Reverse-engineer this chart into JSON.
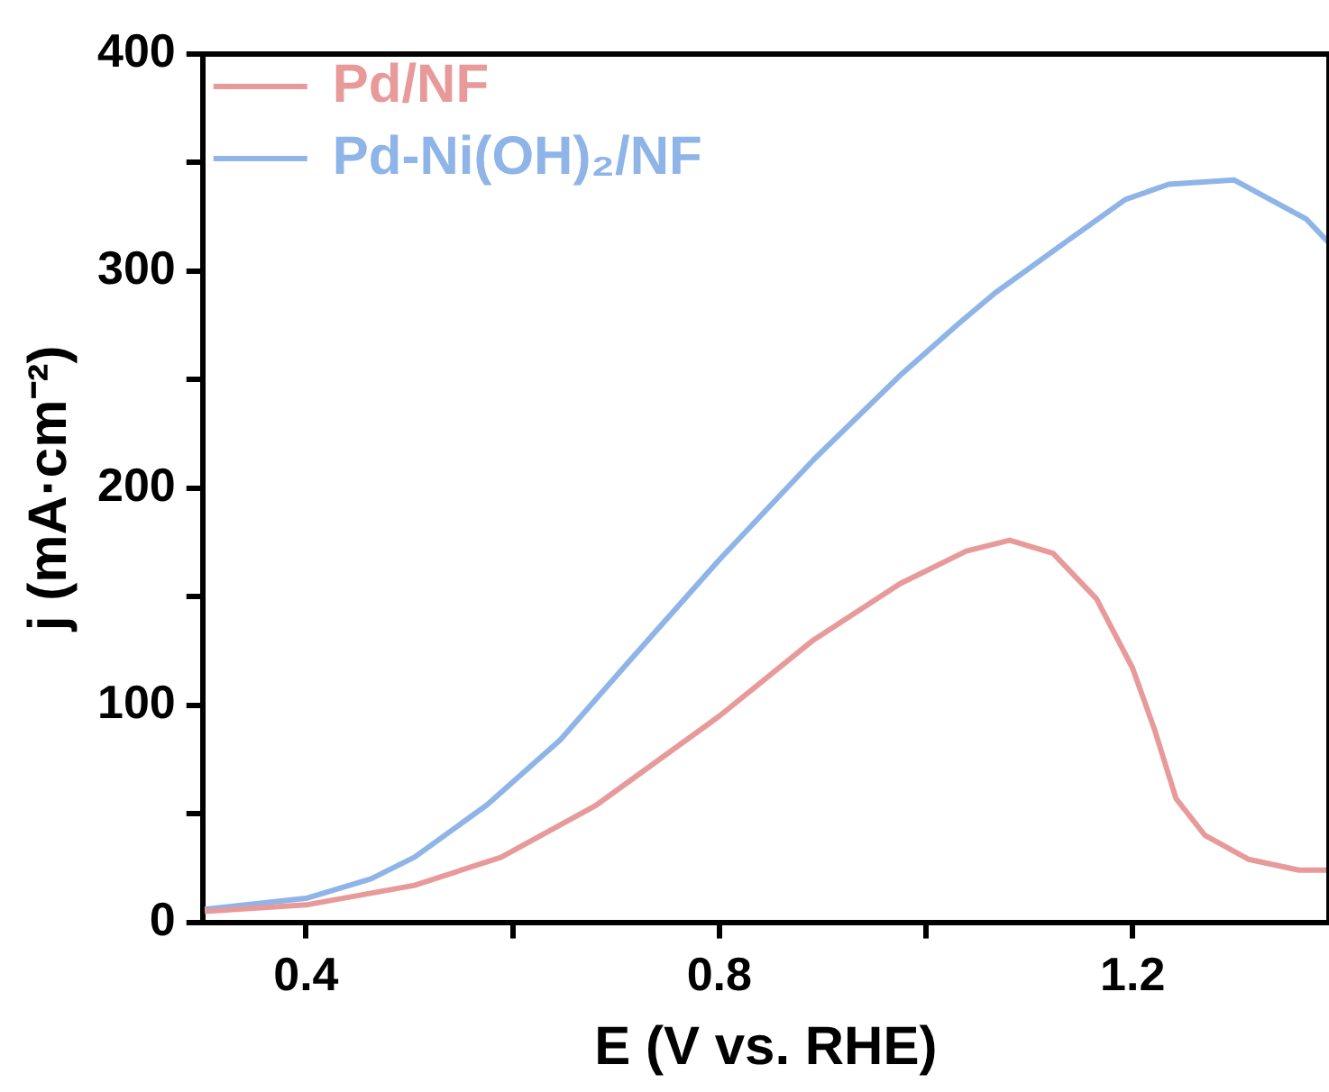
{
  "chart_data": {
    "type": "line",
    "xlabel": "E (V vs. RHE)",
    "ylabel": "j (mA·cm⁻²)",
    "xlim": [
      0.3,
      1.39
    ],
    "xticks": [
      0.4,
      {
        "value": 0.6,
        "label": null
      },
      0.8,
      {
        "value": 1.0,
        "label": null
      },
      1.2
    ],
    "ylim": [
      0,
      400
    ],
    "yticks": [
      0,
      {
        "value": 50,
        "label": null
      },
      100,
      {
        "value": 150,
        "label": null
      },
      200,
      {
        "value": 250,
        "label": null
      },
      300,
      {
        "value": 350,
        "label": null
      },
      400
    ],
    "grid": false,
    "legend": "top left",
    "marker": "none",
    "line_style": "solid",
    "series": [
      {
        "name": "Pd/NF",
        "color": "#e89a9a",
        "x": [
          0.302,
          0.4,
          0.505,
          0.589,
          0.681,
          0.8,
          0.891,
          0.975,
          1.039,
          1.081,
          1.123,
          1.165,
          1.2,
          1.221,
          1.242,
          1.27,
          1.312,
          1.361,
          1.39
        ],
        "values": [
          5,
          8,
          17,
          30,
          54,
          95,
          130,
          156,
          171,
          176,
          170,
          149,
          117,
          89,
          57,
          40,
          29,
          24,
          24
        ]
      },
      {
        "name": "Pd-Ni(OH)₂/NF",
        "color": "#8fb4e8",
        "x": [
          0.302,
          0.4,
          0.463,
          0.505,
          0.575,
          0.646,
          0.716,
          0.8,
          0.891,
          0.975,
          1.032,
          1.067,
          1.137,
          1.193,
          1.235,
          1.298,
          1.333,
          1.368,
          1.39
        ],
        "values": [
          6,
          11,
          20,
          30,
          54,
          84,
          122,
          167,
          213,
          252,
          276,
          290,
          314,
          333,
          340,
          342,
          333,
          324,
          313
        ]
      }
    ]
  }
}
